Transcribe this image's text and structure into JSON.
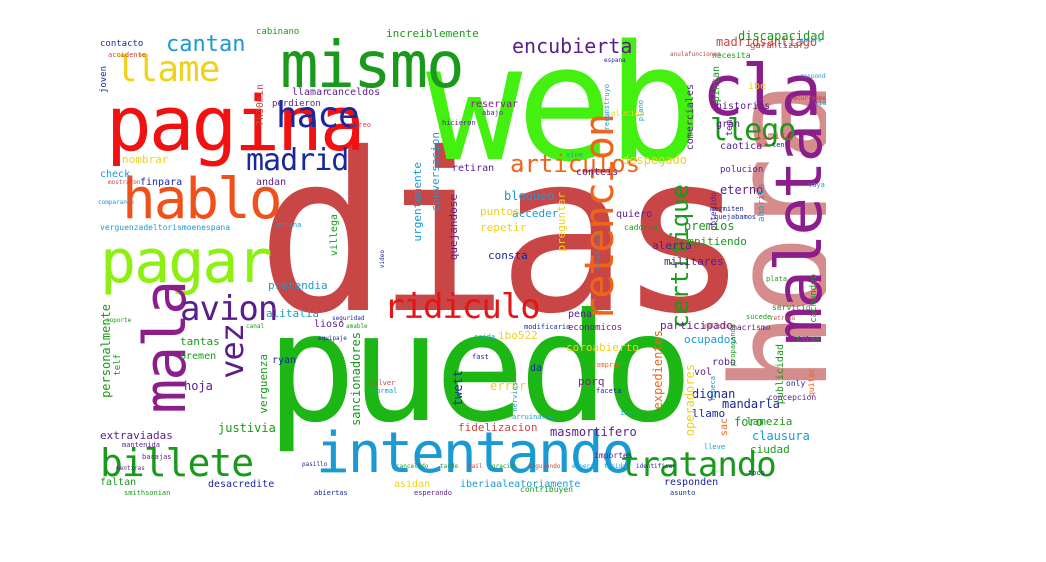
{
  "words": [
    {
      "text": "dias",
      "color": "#c84646"
    },
    {
      "text": "puedo",
      "color": "#1cb714"
    },
    {
      "text": "web",
      "color": "#44f010"
    },
    {
      "text": "hora",
      "color": "#d48c8c"
    },
    {
      "text": "pagina",
      "color": "#f21010"
    },
    {
      "text": "mismo",
      "color": "#1a9a1a"
    },
    {
      "text": "claro",
      "color": "#8c1e8c"
    },
    {
      "text": "maleta",
      "color": "#8c1e8c"
    },
    {
      "text": "intentando",
      "color": "#1a9ad2"
    },
    {
      "text": "pagar",
      "color": "#8cf010"
    },
    {
      "text": "hablo",
      "color": "#f0501a"
    },
    {
      "text": "mala",
      "color": "#8c1e8c"
    },
    {
      "text": "llame",
      "color": "#f0d21a"
    },
    {
      "text": "cantan",
      "color": "#1a9ad2"
    },
    {
      "text": "hace",
      "color": "#1a28a0"
    },
    {
      "text": "madrid",
      "color": "#1a28a0"
    },
    {
      "text": "billete",
      "color": "#1a9a1a"
    },
    {
      "text": "tratando",
      "color": "#1a9a1a"
    },
    {
      "text": "retencion",
      "color": "#f0641a"
    },
    {
      "text": "ridiculo",
      "color": "#e61414"
    },
    {
      "text": "avion",
      "color": "#5a1e8c"
    },
    {
      "text": "vez",
      "color": "#5a1e8c"
    },
    {
      "text": "llego",
      "color": "#1a9a1a"
    },
    {
      "text": "certifique",
      "color": "#1a9a1a"
    },
    {
      "text": "articulos",
      "color": "#f0641a"
    },
    {
      "text": "encubierta",
      "color": "#5a1e8c"
    },
    {
      "text": "increiblemente",
      "color": "#1a9a1a"
    },
    {
      "text": "madridsantiago",
      "color": "#c84646"
    },
    {
      "text": "discapacidad",
      "color": "#1a9a1a"
    },
    {
      "text": "contacto",
      "color": "#1a28a0"
    },
    {
      "text": "cabinano",
      "color": "#1a9a1a"
    },
    {
      "text": "garantizar",
      "color": "#c84646"
    },
    {
      "text": "canceldos",
      "color": "#5a1e8c"
    },
    {
      "text": "llamar",
      "color": "#5a1e8c"
    },
    {
      "text": "reservar",
      "color": "#8c1e8c"
    },
    {
      "text": "comerciales",
      "color": "#5a1e8c"
    },
    {
      "text": "pintan",
      "color": "#1a9a1a"
    },
    {
      "text": "historias",
      "color": "#5a1e8c"
    },
    {
      "text": "limito",
      "color": "#c84646"
    },
    {
      "text": "gran",
      "color": "#5a1e8c"
    },
    {
      "text": "caotica",
      "color": "#5a1e8c"
    },
    {
      "text": "eterno",
      "color": "#5a1e8c"
    },
    {
      "text": "despegado",
      "color": "#f0d21a"
    },
    {
      "text": "nombrar",
      "color": "#f0d21a"
    },
    {
      "text": "bloqueo",
      "color": "#1a9ad2"
    },
    {
      "text": "acceder",
      "color": "#1a9ad2"
    },
    {
      "text": "puntos",
      "color": "#f0d21a"
    },
    {
      "text": "repetir",
      "color": "#f0d21a"
    },
    {
      "text": "premios",
      "color": "#1a9a1a"
    },
    {
      "text": "compitiendo",
      "color": "#1a9a1a"
    },
    {
      "text": "alerta",
      "color": "#5a1e8c"
    },
    {
      "text": "militares",
      "color": "#5a1e8c"
    },
    {
      "text": "consta",
      "color": "#1a28a0"
    },
    {
      "text": "pretendia",
      "color": "#1a9ad2"
    },
    {
      "text": "participado",
      "color": "#5a1e8c"
    },
    {
      "text": "ocupados",
      "color": "#1a9ad2"
    },
    {
      "text": "alitalia",
      "color": "#1a9ad2"
    },
    {
      "text": "ibo522",
      "color": "#f0d21a"
    },
    {
      "text": "coroabierto",
      "color": "#f0d21a"
    },
    {
      "text": "mandarla",
      "color": "#1a28a0"
    },
    {
      "text": "hoja",
      "color": "#5a1e8c"
    },
    {
      "text": "twett",
      "color": "#1a28a0"
    },
    {
      "text": "porq",
      "color": "#8c1e8c"
    },
    {
      "text": "error",
      "color": "#f0d21a"
    },
    {
      "text": "expedientes",
      "color": "#f0641a"
    },
    {
      "text": "dignan",
      "color": "#1a28a0"
    },
    {
      "text": "foro",
      "color": "#1a9a1a"
    },
    {
      "text": "lamezia",
      "color": "#1a9a1a"
    },
    {
      "text": "clausura",
      "color": "#1a9ad2"
    },
    {
      "text": "justivia",
      "color": "#1a9a1a"
    },
    {
      "text": "extraviadas",
      "color": "#5a1e8c"
    },
    {
      "text": "fidelizacion",
      "color": "#c84646"
    },
    {
      "text": "masmortifero",
      "color": "#5a1e8c"
    },
    {
      "text": "operadores",
      "color": "#f0d21a"
    },
    {
      "text": "llamo",
      "color": "#1a28a0"
    },
    {
      "text": "ciudad",
      "color": "#1a9a1a"
    },
    {
      "text": "desacredite",
      "color": "#1a28a0"
    },
    {
      "text": "faltan",
      "color": "#1a9a1a"
    },
    {
      "text": "asidan",
      "color": "#f0d21a"
    },
    {
      "text": "iberiaaleatoriamente",
      "color": "#1a9ad2"
    },
    {
      "text": "responden",
      "color": "#1a28a0"
    },
    {
      "text": "sancionadores",
      "color": "#1a9a1a"
    },
    {
      "text": "personalmente",
      "color": "#1a9a1a"
    },
    {
      "text": "verguenza",
      "color": "#1a9a1a"
    },
    {
      "text": "tantas",
      "color": "#1a9a1a"
    },
    {
      "text": "bremen",
      "color": "#1a9a1a"
    },
    {
      "text": "ryan",
      "color": "#1a28a0"
    },
    {
      "text": "publicidad",
      "color": "#1a9a1a"
    },
    {
      "text": "conversacion",
      "color": "#1a9ad2"
    },
    {
      "text": "urgentemente",
      "color": "#1a9ad2"
    },
    {
      "text": "quejandose",
      "color": "#5a1e8c"
    },
    {
      "text": "preguntar",
      "color": "#f0d21a"
    },
    {
      "text": "retiran",
      "color": "#5a1e8c"
    },
    {
      "text": "check",
      "color": "#1a9ad2"
    },
    {
      "text": "finpara",
      "color": "#1a28a0"
    },
    {
      "text": "andan",
      "color": "#5a1e8c"
    },
    {
      "text": "conteis",
      "color": "#5a1e8c"
    },
    {
      "text": "quiero",
      "color": "#5a1e8c"
    },
    {
      "text": "economicos",
      "color": "#5a1e8c"
    },
    {
      "text": "lioso",
      "color": "#5a1e8c"
    },
    {
      "text": "villega",
      "color": "#1a9a1a"
    },
    {
      "text": "robo",
      "color": "#5a1e8c"
    },
    {
      "text": "vol",
      "color": "#5a1e8c"
    },
    {
      "text": "7h30min",
      "color": "#c84646"
    },
    {
      "text": "ibe",
      "color": "#f0d21a"
    },
    {
      "text": "tem",
      "color": "#5a1e8c"
    },
    {
      "text": "joven",
      "color": "#1a28a0"
    },
    {
      "text": "perdieron",
      "color": "#5a1e8c"
    },
    {
      "text": "sac",
      "color": "#f0641a"
    },
    {
      "text": "da",
      "color": "#1a28a0"
    },
    {
      "text": "pena",
      "color": "#5a1e8c"
    },
    {
      "text": "accidente",
      "color": "#c84646"
    },
    {
      "text": "smithsonian",
      "color": "#1a9a1a"
    },
    {
      "text": "necesita",
      "color": "#1a9a1a"
    },
    {
      "text": "manana",
      "color": "#1a9ad2"
    },
    {
      "text": "solucion",
      "color": "#f0d21a"
    },
    {
      "text": "polucion",
      "color": "#5a1e8c"
    },
    {
      "text": "ahorita",
      "color": "#1a9ad2"
    },
    {
      "text": "cachondeo",
      "color": "#1a9a1a"
    },
    {
      "text": "abajo",
      "color": "#5a1e8c"
    },
    {
      "text": "hicieron",
      "color": "#5a1e8c"
    },
    {
      "text": "vine",
      "color": "#1a9ad2"
    },
    {
      "text": "obtenido",
      "color": "#5a1e8c"
    },
    {
      "text": "cadorna",
      "color": "#1a9a1a"
    },
    {
      "text": "quiere",
      "color": "#1a9ad2"
    },
    {
      "text": "respondan",
      "color": "#1a9ad2"
    },
    {
      "text": "servicio",
      "color": "#1a9a1a"
    },
    {
      "text": "macrismo",
      "color": "#5a1e8c"
    },
    {
      "text": "filas",
      "color": "#1a9a1a"
    },
    {
      "text": "only",
      "color": "#1a28a0"
    },
    {
      "text": "concepcion",
      "color": "#5a1e8c"
    },
    {
      "text": "importes",
      "color": "#5a1e8c"
    },
    {
      "text": "contribuyen",
      "color": "#1a9a1a"
    },
    {
      "text": "asunto",
      "color": "#1a28a0"
    },
    {
      "text": "esperando",
      "color": "#5a1e8c"
    },
    {
      "text": "abiertas",
      "color": "#1a28a0"
    },
    {
      "text": "barajas",
      "color": "#5a1e8c"
    },
    {
      "text": "mantenida",
      "color": "#5a1e8c"
    },
    {
      "text": "pasillo",
      "color": "#1a28a0"
    },
    {
      "text": "volver",
      "color": "#c84646"
    },
    {
      "text": "fast",
      "color": "#1a28a0"
    },
    {
      "text": "faceta",
      "color": "#1a28a0"
    },
    {
      "text": "arruinarme",
      "color": "#1a9ad2"
    },
    {
      "text": "iban",
      "color": "#1a9ad2"
    },
    {
      "text": "comprar",
      "color": "#f0641a"
    },
    {
      "text": "lleve",
      "color": "#1a9ad2"
    },
    {
      "text": "toco",
      "color": "#1a28a0"
    },
    {
      "text": "telf",
      "color": "#1a9a1a"
    },
    {
      "text": "verguenzadeltorismoenespana",
      "color": "#1a9ad2"
    },
    {
      "text": "mostraron",
      "color": "#c84646"
    },
    {
      "text": "comparando",
      "color": "#1a9ad2"
    },
    {
      "text": "vaya",
      "color": "#1a9ad2"
    },
    {
      "text": "plata",
      "color": "#1a9a1a"
    },
    {
      "text": "quejabamos",
      "color": "#1a28a0"
    },
    {
      "text": "mermiten",
      "color": "#1a28a0"
    },
    {
      "text": "propaganda",
      "color": "#1a9a1a"
    },
    {
      "text": "sucede",
      "color": "#1a9a1a"
    },
    {
      "text": "anulafuncionan",
      "color": "#c84646"
    },
    {
      "text": "retraso",
      "color": "#c84646"
    },
    {
      "text": "modificario",
      "color": "#1a28a0"
    },
    {
      "text": "caida",
      "color": "#1a9ad2"
    },
    {
      "text": "equipaje",
      "color": "#1a28a0"
    },
    {
      "text": "seguridad",
      "color": "#1a28a0"
    },
    {
      "text": "via",
      "color": "#1a9ad2"
    },
    {
      "text": "mentiras",
      "color": "#5a1e8c"
    },
    {
      "text": "canal",
      "color": "#1a9a1a"
    },
    {
      "text": "soporte",
      "color": "#1a9a1a"
    },
    {
      "text": "malisimo",
      "color": "#c84646"
    },
    {
      "text": "recurreame",
      "color": "#c84646"
    },
    {
      "text": "telefonica",
      "color": "#1a9ad2"
    },
    {
      "text": "reconstruyo",
      "color": "#1a9ad2"
    },
    {
      "text": "cancelado",
      "color": "#1a9a1a"
    },
    {
      "text": "amable",
      "color": "#1a9a1a"
    },
    {
      "text": "video",
      "color": "#1a28a0"
    },
    {
      "text": "aereo",
      "color": "#c84646"
    },
    {
      "text": "espana",
      "color": "#1a28a0"
    },
    {
      "text": "normal",
      "color": "#1a9ad2"
    },
    {
      "text": "nervios",
      "color": "#1a9ad2"
    },
    {
      "text": "plano",
      "color": "#1a9ad2"
    },
    {
      "text": "ten",
      "color": "#1a28a0"
    },
    {
      "text": "tarde",
      "color": "#1a9a1a"
    },
    {
      "text": "mail",
      "color": "#c84646"
    },
    {
      "text": "gracias",
      "color": "#1a9a1a"
    },
    {
      "text": "siguiendo",
      "color": "#c84646"
    },
    {
      "text": "espera",
      "color": "#1a9ad2"
    },
    {
      "text": "tenido",
      "color": "#1a9ad2"
    },
    {
      "text": "rebeca",
      "color": "#1a9ad2"
    },
    {
      "text": "quitar",
      "color": "#f0641a"
    },
    {
      "text": "identificar",
      "color": "#1a28a0"
    }
  ]
}
